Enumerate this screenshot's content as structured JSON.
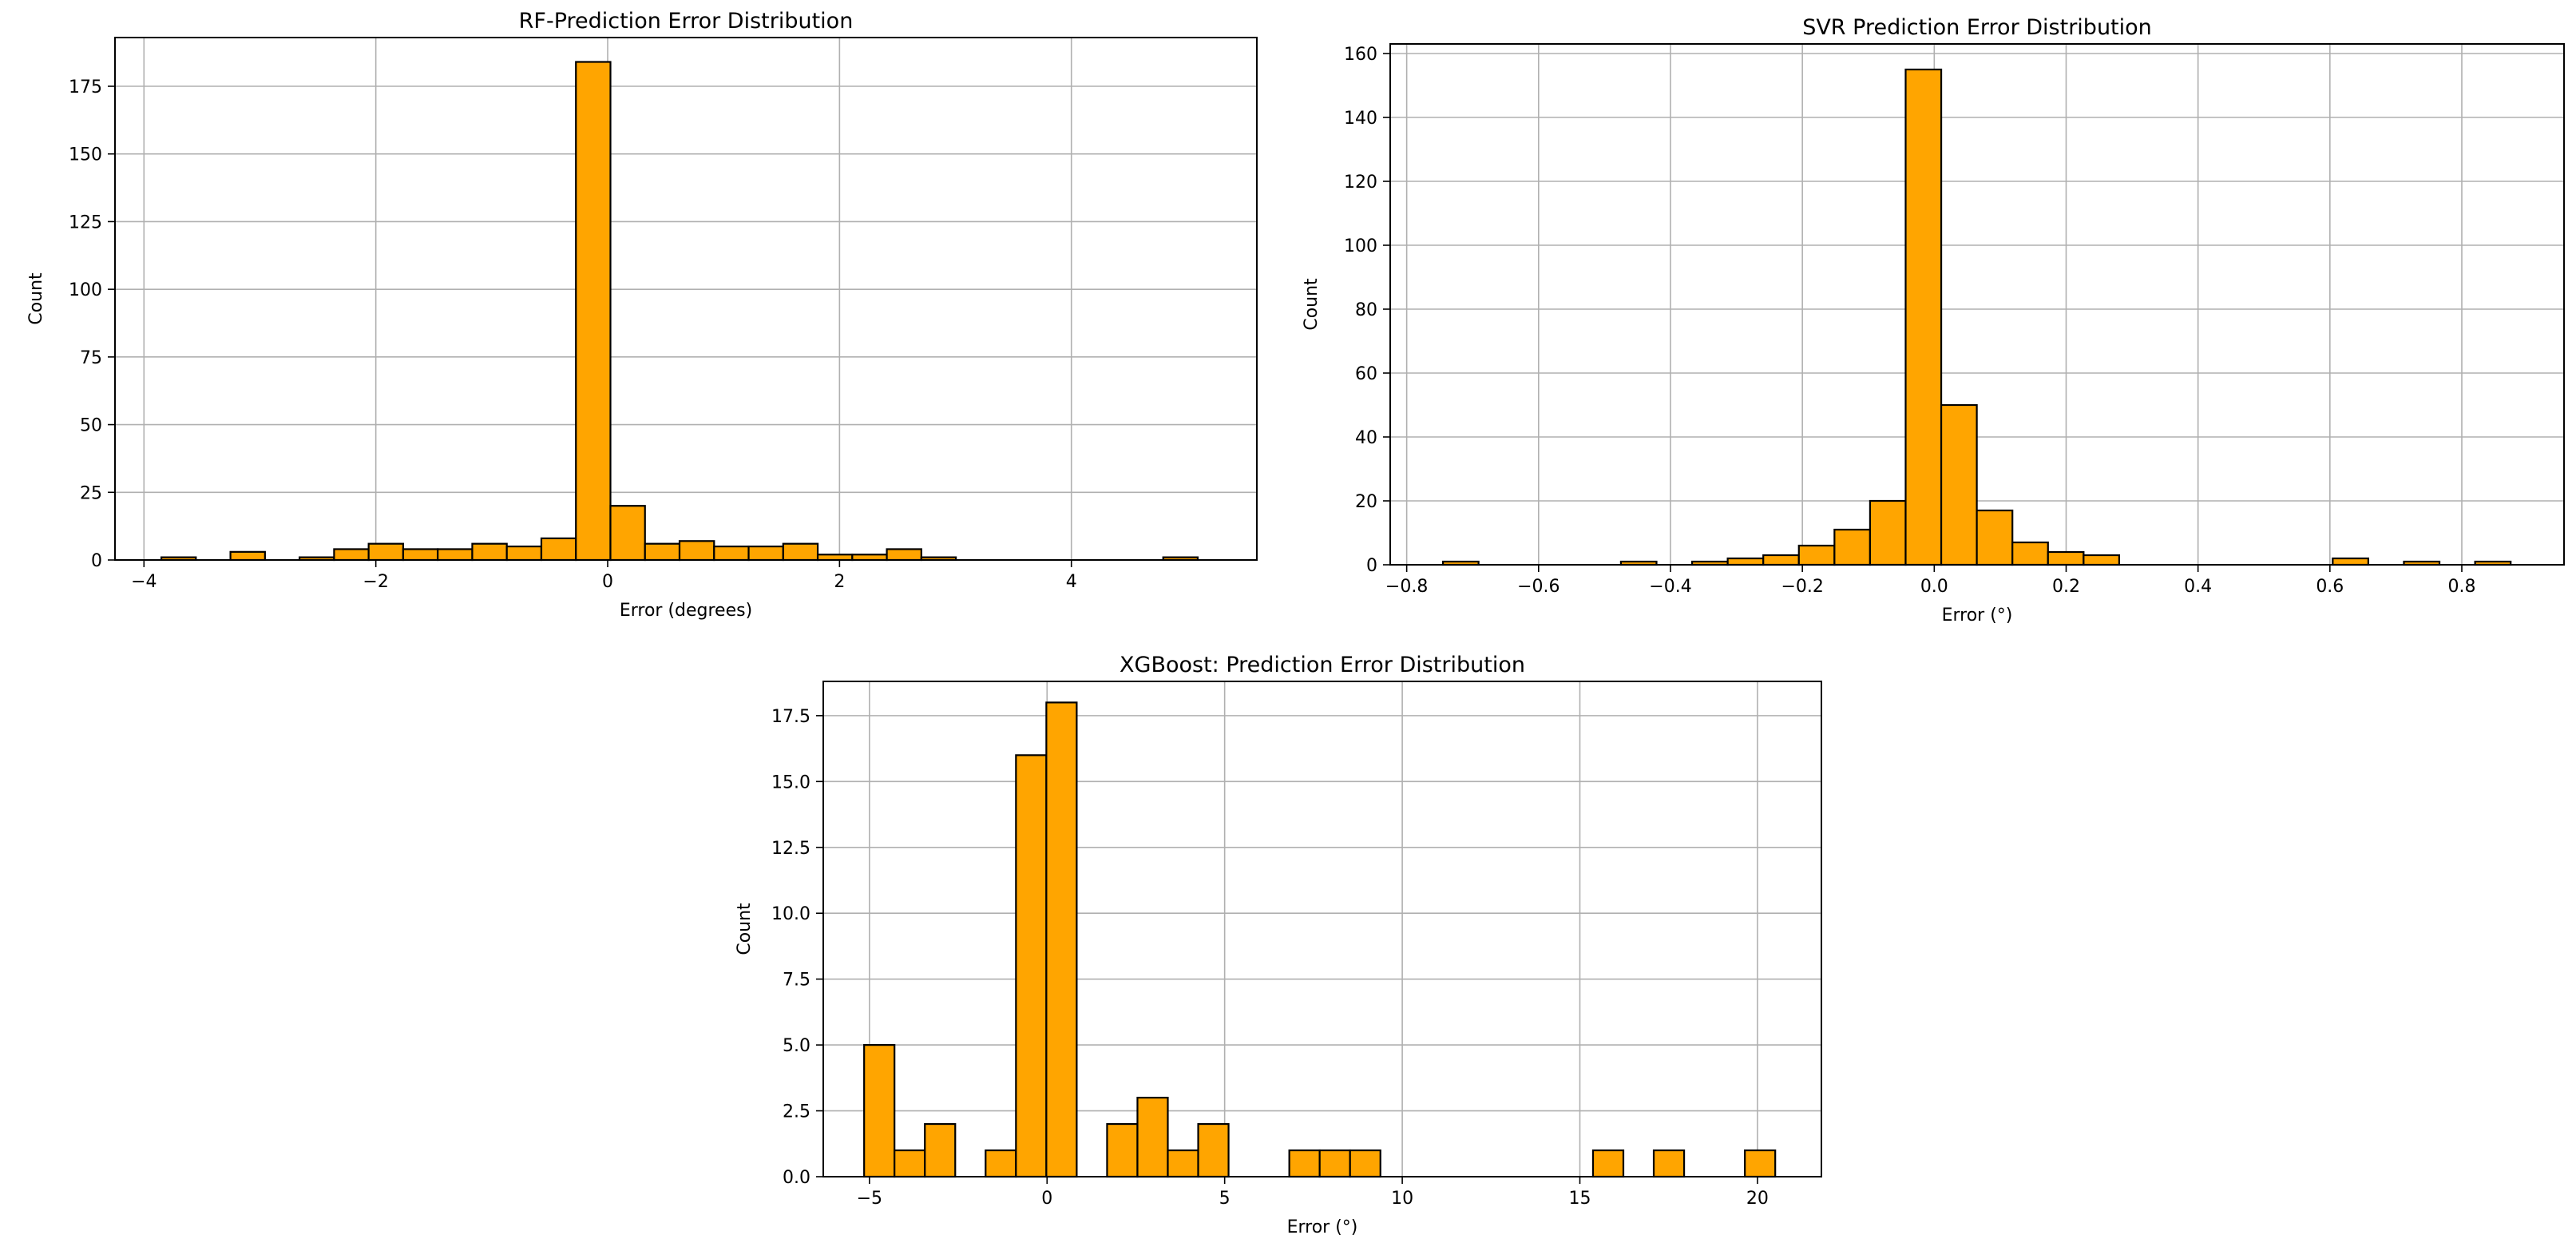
{
  "chart_data": [
    {
      "type": "bar",
      "title": "RF-Prediction Error Distribution",
      "xlabel": "Error (degrees)",
      "ylabel": "Count",
      "xlim": [
        -4.25,
        5.6
      ],
      "ylim": [
        0,
        193
      ],
      "xticks": [
        -4,
        -2,
        0,
        2,
        4
      ],
      "xtick_labels": [
        "−4",
        "−2",
        "0",
        "2",
        "4"
      ],
      "yticks": [
        0,
        25,
        50,
        75,
        100,
        125,
        150,
        175
      ],
      "grid": true,
      "bin_start": -3.85,
      "bin_width": 0.298,
      "values": [
        1,
        0,
        3,
        0,
        1,
        4,
        6,
        4,
        4,
        6,
        5,
        8,
        184,
        20,
        6,
        7,
        5,
        5,
        6,
        2,
        2,
        4,
        1,
        0,
        0,
        0,
        0,
        0,
        0,
        1
      ],
      "colors": {
        "bar": "#ffa500",
        "edge": "#000000",
        "grid": "#b0b0b0"
      }
    },
    {
      "type": "bar",
      "title": "SVR Prediction Error Distribution",
      "xlabel": "Error (°)",
      "ylabel": "Count",
      "xlim": [
        -0.825,
        0.955
      ],
      "ylim": [
        0,
        163
      ],
      "xticks": [
        -0.8,
        -0.6,
        -0.4,
        -0.2,
        0.0,
        0.2,
        0.4,
        0.6,
        0.8
      ],
      "xtick_labels": [
        "−0.8",
        "−0.6",
        "−0.4",
        "−0.2",
        "0.0",
        "0.2",
        "0.4",
        "0.6",
        "0.8"
      ],
      "yticks": [
        0,
        20,
        40,
        60,
        80,
        100,
        120,
        140,
        160
      ],
      "grid": true,
      "bin_start": -0.745,
      "bin_width": 0.05397,
      "values": [
        1,
        0,
        0,
        0,
        0,
        1,
        0,
        1,
        2,
        3,
        6,
        11,
        20,
        155,
        50,
        17,
        7,
        4,
        3,
        0,
        0,
        0,
        0,
        0,
        0,
        2,
        0,
        1,
        0,
        1
      ],
      "colors": {
        "bar": "#ffa500",
        "edge": "#000000",
        "grid": "#b0b0b0"
      }
    },
    {
      "type": "bar",
      "title": "XGBoost: Prediction Error Distribution",
      "xlabel": "Error (°)",
      "ylabel": "Count",
      "xlim": [
        -6.3,
        21.8
      ],
      "ylim": [
        0,
        18.8
      ],
      "xticks": [
        -5,
        0,
        5,
        10,
        15,
        20
      ],
      "xtick_labels": [
        "−5",
        "0",
        "5",
        "10",
        "15",
        "20"
      ],
      "yticks": [
        0.0,
        2.5,
        5.0,
        7.5,
        10.0,
        12.5,
        15.0,
        17.5
      ],
      "ytick_labels": [
        "0.0",
        "2.5",
        "5.0",
        "7.5",
        "10.0",
        "12.5",
        "15.0",
        "17.5"
      ],
      "grid": true,
      "bin_start": -5.15,
      "bin_width": 0.855,
      "values": [
        5,
        1,
        2,
        0,
        1,
        16,
        18,
        0,
        2,
        3,
        1,
        2,
        0,
        0,
        1,
        1,
        1,
        0,
        0,
        0,
        0,
        0,
        0,
        0,
        1,
        0,
        1,
        0,
        0,
        1
      ],
      "colors": {
        "bar": "#ffa500",
        "edge": "#000000",
        "grid": "#b0b0b0"
      }
    }
  ]
}
